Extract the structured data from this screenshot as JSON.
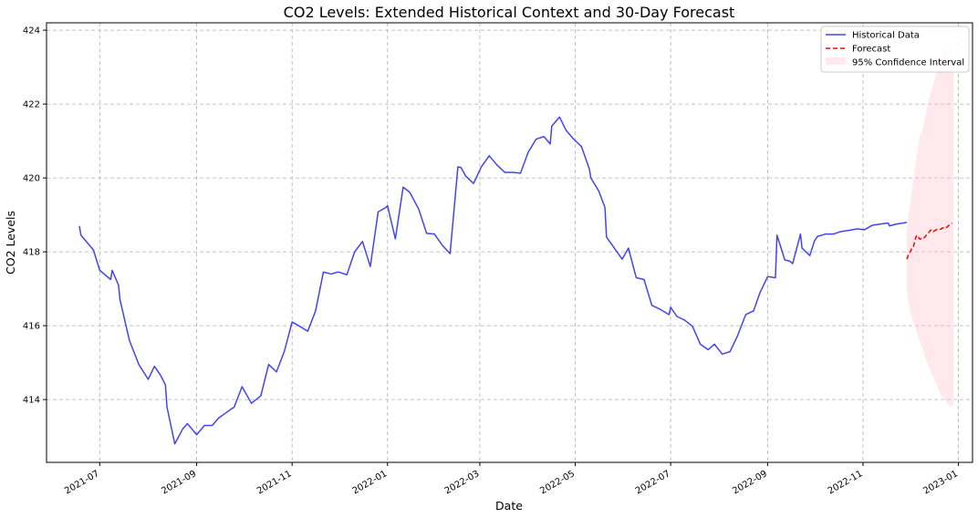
{
  "chart_data": {
    "type": "line",
    "title": "CO2 Levels: Extended Historical Context and 30-Day Forecast",
    "xlabel": "Date",
    "ylabel": "CO2 Levels",
    "xlim": [
      "2021-05-28",
      "2023-01-10"
    ],
    "ylim": [
      412.3,
      424.2
    ],
    "grid": true,
    "legend_position": "top-right",
    "x_ticks": [
      "2021-07-01",
      "2021-09-01",
      "2021-11-01",
      "2022-01-01",
      "2022-03-01",
      "2022-05-01",
      "2022-07-01",
      "2022-09-01",
      "2022-11-01",
      "2023-01-01"
    ],
    "x_tick_labels": [
      "2021-07",
      "2021-09",
      "2021-11",
      "2022-01",
      "2022-03",
      "2022-05",
      "2022-07",
      "2022-09",
      "2022-11",
      "2023-01"
    ],
    "y_ticks": [
      414,
      416,
      418,
      420,
      422,
      424
    ],
    "series": [
      {
        "name": "Historical Data",
        "style": "solid",
        "color": "#4444ee",
        "x": [
          "2021-06-18",
          "2021-06-19",
          "2021-06-27",
          "2021-07-01",
          "2021-07-08",
          "2021-07-09",
          "2021-07-13",
          "2021-07-14",
          "2021-07-20",
          "2021-07-26",
          "2021-08-01",
          "2021-08-05",
          "2021-08-09",
          "2021-08-12",
          "2021-08-13",
          "2021-08-18",
          "2021-08-23",
          "2021-08-26",
          "2021-09-01",
          "2021-09-06",
          "2021-09-11",
          "2021-09-15",
          "2021-09-20",
          "2021-09-25",
          "2021-09-30",
          "2021-10-06",
          "2021-10-12",
          "2021-10-17",
          "2021-10-22",
          "2021-10-27",
          "2021-11-01",
          "2021-11-06",
          "2021-11-11",
          "2021-11-16",
          "2021-11-21",
          "2021-11-26",
          "2021-11-30",
          "2021-12-01",
          "2021-12-06",
          "2021-12-11",
          "2021-12-16",
          "2021-12-21",
          "2021-12-26",
          "2021-12-31",
          "2022-01-01",
          "2022-01-06",
          "2022-01-11",
          "2022-01-15",
          "2022-01-16",
          "2022-01-21",
          "2022-01-26",
          "2022-01-31",
          "2022-02-05",
          "2022-02-10",
          "2022-02-15",
          "2022-02-17",
          "2022-02-20",
          "2022-02-25",
          "2022-03-02",
          "2022-03-07",
          "2022-03-12",
          "2022-03-17",
          "2022-03-22",
          "2022-03-27",
          "2022-04-01",
          "2022-04-06",
          "2022-04-11",
          "2022-04-15",
          "2022-04-16",
          "2022-04-21",
          "2022-04-25",
          "2022-04-30",
          "2022-05-05",
          "2022-05-10",
          "2022-05-11",
          "2022-05-16",
          "2022-05-20",
          "2022-05-21",
          "2022-05-26",
          "2022-05-31",
          "2022-06-04",
          "2022-06-09",
          "2022-06-14",
          "2022-06-19",
          "2022-06-24",
          "2022-06-30",
          "2022-07-01",
          "2022-07-05",
          "2022-07-10",
          "2022-07-15",
          "2022-07-20",
          "2022-07-25",
          "2022-07-29",
          "2022-08-03",
          "2022-08-08",
          "2022-08-13",
          "2022-08-18",
          "2022-08-23",
          "2022-08-27",
          "2022-09-01",
          "2022-09-06",
          "2022-09-07",
          "2022-09-12",
          "2022-09-15",
          "2022-09-17",
          "2022-09-22",
          "2022-09-23",
          "2022-09-28",
          "2022-10-01",
          "2022-10-03",
          "2022-10-08",
          "2022-10-13",
          "2022-10-18",
          "2022-10-23",
          "2022-10-28",
          "2022-11-02",
          "2022-11-07",
          "2022-11-12",
          "2022-11-17",
          "2022-11-18",
          "2022-11-22",
          "2022-11-27",
          "2022-11-29"
        ],
        "y": [
          418.7,
          418.45,
          418.05,
          417.5,
          417.25,
          417.5,
          417.1,
          416.7,
          415.6,
          414.95,
          414.55,
          414.9,
          414.65,
          414.4,
          413.8,
          412.8,
          413.2,
          413.35,
          413.05,
          413.3,
          413.3,
          413.5,
          413.65,
          413.8,
          414.35,
          413.9,
          414.1,
          414.95,
          414.75,
          415.3,
          416.1,
          415.98,
          415.85,
          416.4,
          417.45,
          417.4,
          417.45,
          417.45,
          417.38,
          418.0,
          418.28,
          417.6,
          419.08,
          419.2,
          419.25,
          418.35,
          419.75,
          419.62,
          419.55,
          419.15,
          418.5,
          418.48,
          418.18,
          417.95,
          420.3,
          420.28,
          420.05,
          419.85,
          420.3,
          420.6,
          420.35,
          420.15,
          420.15,
          420.13,
          420.7,
          421.05,
          421.12,
          420.92,
          421.4,
          421.65,
          421.3,
          421.05,
          420.85,
          420.25,
          420.0,
          419.65,
          419.2,
          418.4,
          418.1,
          417.8,
          418.1,
          417.3,
          417.25,
          416.55,
          416.45,
          416.3,
          416.5,
          416.25,
          416.15,
          415.98,
          415.5,
          415.35,
          415.5,
          415.23,
          415.3,
          415.75,
          416.3,
          416.4,
          416.88,
          417.33,
          417.3,
          418.45,
          417.78,
          417.75,
          417.68,
          418.48,
          418.1,
          417.9,
          418.3,
          418.42,
          418.48,
          418.48,
          418.55,
          418.58,
          418.62,
          418.6,
          418.72,
          418.75,
          418.78,
          418.7,
          418.75,
          418.78,
          418.8
        ]
      },
      {
        "name": "Forecast",
        "style": "dashed",
        "color": "#ff0000",
        "x": [
          "2022-11-29",
          "2022-11-30",
          "2022-12-01",
          "2022-12-02",
          "2022-12-03",
          "2022-12-04",
          "2022-12-05",
          "2022-12-06",
          "2022-12-07",
          "2022-12-08",
          "2022-12-09",
          "2022-12-10",
          "2022-12-11",
          "2022-12-12",
          "2022-12-13",
          "2022-12-14",
          "2022-12-15",
          "2022-12-16",
          "2022-12-17",
          "2022-12-18",
          "2022-12-19",
          "2022-12-20",
          "2022-12-21",
          "2022-12-22",
          "2022-12-23",
          "2022-12-24",
          "2022-12-25",
          "2022-12-26",
          "2022-12-27",
          "2022-12-28"
        ],
        "y": [
          417.8,
          417.92,
          417.98,
          418.08,
          418.1,
          418.28,
          418.42,
          418.45,
          418.35,
          418.35,
          418.4,
          418.38,
          418.42,
          418.5,
          418.52,
          418.58,
          418.6,
          418.55,
          418.58,
          418.6,
          418.62,
          418.6,
          418.62,
          418.65,
          418.62,
          418.65,
          418.68,
          418.72,
          418.75,
          418.78
        ]
      }
    ],
    "confidence_band": {
      "name": "95% Confidence Interval",
      "color": "#ffb6c1",
      "x": [
        "2022-11-29",
        "2022-12-01",
        "2022-12-03",
        "2022-12-05",
        "2022-12-07",
        "2022-12-09",
        "2022-12-11",
        "2022-12-13",
        "2022-12-15",
        "2022-12-17",
        "2022-12-19",
        "2022-12-21",
        "2022-12-23",
        "2022-12-25",
        "2022-12-27",
        "2022-12-29"
      ],
      "upper": [
        418.6,
        419.3,
        419.9,
        420.5,
        421.1,
        421.3,
        421.7,
        422.1,
        422.4,
        422.7,
        423.0,
        423.2,
        423.4,
        423.5,
        423.6,
        423.6
      ],
      "lower": [
        416.9,
        416.4,
        416.1,
        415.9,
        415.6,
        415.4,
        415.1,
        414.9,
        414.7,
        414.5,
        414.3,
        414.1,
        414.0,
        413.9,
        413.8,
        413.85
      ]
    }
  }
}
